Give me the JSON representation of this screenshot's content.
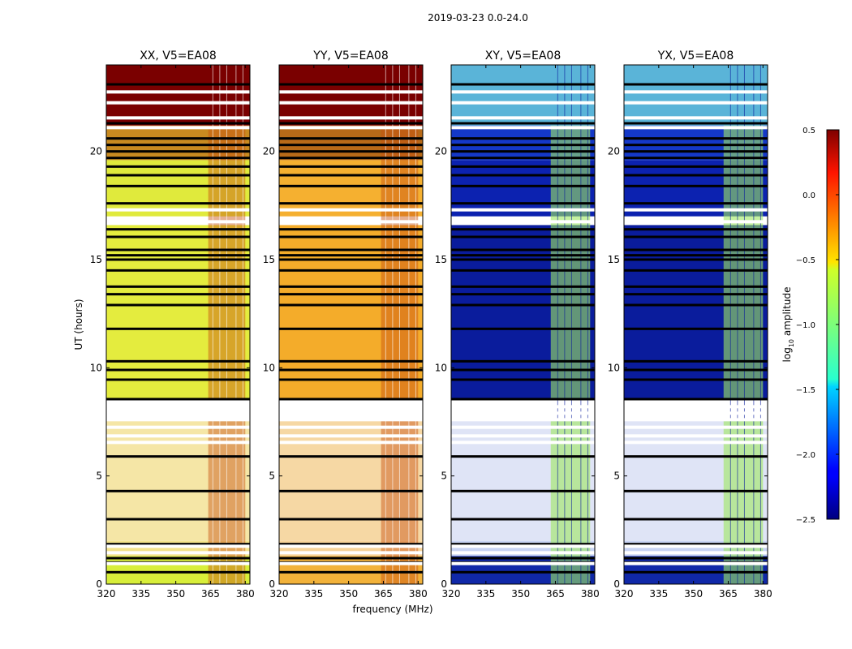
{
  "figure": {
    "suptitle": "2019-03-23 0.0-24.0",
    "ylabel": "UT (hours)",
    "xlabel": "frequency (MHz)"
  },
  "chart_data": {
    "type": "heatmap",
    "title": "2019-03-23 0.0-24.0",
    "xlabel": "frequency (MHz)",
    "ylabel": "UT (hours)",
    "xlim": [
      320,
      382
    ],
    "ylim": [
      0,
      24
    ],
    "x_ticks": [
      320,
      335,
      350,
      365,
      380
    ],
    "y_ticks": [
      0,
      5,
      10,
      15,
      20
    ],
    "panels": [
      {
        "title": "XX, V5=EA08",
        "bands": [
          {
            "from": 0,
            "to": 1.3,
            "color": "#d8ee3a"
          },
          {
            "from": 1.3,
            "to": 2.0,
            "color": "#f4e48c"
          },
          {
            "from": 2.0,
            "to": 7.6,
            "color": "#f5e6a6"
          },
          {
            "from": 7.6,
            "to": 8.6,
            "color": "#ffffff"
          },
          {
            "from": 8.6,
            "to": 16.6,
            "color": "#e4ec3e"
          },
          {
            "from": 16.6,
            "to": 17.0,
            "color": "#ffffff"
          },
          {
            "from": 17.0,
            "to": 19.6,
            "color": "#e0ea3c"
          },
          {
            "from": 19.6,
            "to": 21.2,
            "color": "#c88a20"
          },
          {
            "from": 21.2,
            "to": 24,
            "color": "#7a0000"
          }
        ]
      },
      {
        "title": "YY, V5=EA08",
        "bands": [
          {
            "from": 0,
            "to": 1.3,
            "color": "#f2b23a"
          },
          {
            "from": 1.3,
            "to": 2.0,
            "color": "#f7d49a"
          },
          {
            "from": 2.0,
            "to": 7.6,
            "color": "#f6d8a4"
          },
          {
            "from": 7.6,
            "to": 8.6,
            "color": "#ffffff"
          },
          {
            "from": 8.6,
            "to": 16.6,
            "color": "#f4ac2a"
          },
          {
            "from": 16.6,
            "to": 17.0,
            "color": "#ffffff"
          },
          {
            "from": 17.0,
            "to": 19.6,
            "color": "#f5b030"
          },
          {
            "from": 19.6,
            "to": 21.2,
            "color": "#b86a18"
          },
          {
            "from": 21.2,
            "to": 24,
            "color": "#7a0000"
          }
        ]
      },
      {
        "title": "XY, V5=EA08",
        "bands": [
          {
            "from": 0,
            "to": 1.3,
            "color": "#1028a8"
          },
          {
            "from": 1.3,
            "to": 2.0,
            "color": "#c8d4f4"
          },
          {
            "from": 2.0,
            "to": 7.6,
            "color": "#dfe4f6"
          },
          {
            "from": 7.6,
            "to": 8.6,
            "color": "#ffffff"
          },
          {
            "from": 8.6,
            "to": 16.6,
            "color": "#0a1c9c"
          },
          {
            "from": 16.6,
            "to": 17.0,
            "color": "#ffffff"
          },
          {
            "from": 17.0,
            "to": 19.6,
            "color": "#0c22b0"
          },
          {
            "from": 19.6,
            "to": 21.2,
            "color": "#1438c8"
          },
          {
            "from": 21.2,
            "to": 24,
            "color": "#5ab4d8"
          }
        ]
      },
      {
        "title": "YX, V5=EA08",
        "bands": [
          {
            "from": 0,
            "to": 1.3,
            "color": "#1028a8"
          },
          {
            "from": 1.3,
            "to": 2.0,
            "color": "#c8d4f4"
          },
          {
            "from": 2.0,
            "to": 7.6,
            "color": "#dfe4f6"
          },
          {
            "from": 7.6,
            "to": 8.6,
            "color": "#ffffff"
          },
          {
            "from": 8.6,
            "to": 16.6,
            "color": "#0a1c9c"
          },
          {
            "from": 16.6,
            "to": 17.0,
            "color": "#ffffff"
          },
          {
            "from": 17.0,
            "to": 19.6,
            "color": "#0c22b0"
          },
          {
            "from": 19.6,
            "to": 21.2,
            "color": "#1438c8"
          },
          {
            "from": 21.2,
            "to": 24,
            "color": "#5ab4d8"
          }
        ]
      }
    ],
    "freq_feature_bands": {
      "parallel": {
        "from": 364,
        "to": 380,
        "color": "#c85010"
      },
      "cross": {
        "from": 363,
        "to": 380,
        "color": "#9ee860"
      }
    },
    "white_gap_rows_hours": [
      0.95,
      1.45,
      1.75,
      6.55,
      6.85,
      7.25,
      7.6,
      7.9,
      8.2,
      16.75,
      17.3,
      21.1,
      21.55,
      22.25,
      22.75
    ],
    "black_gap_rows_hours": [
      0.55,
      1.0,
      1.2,
      1.85,
      3.0,
      4.3,
      5.9,
      8.55,
      9.45,
      9.9,
      10.3,
      11.8,
      12.9,
      13.4,
      13.75,
      14.5,
      15.0,
      15.2,
      15.45,
      16.05,
      16.4,
      17.6,
      18.4,
      18.9,
      19.3,
      19.7,
      20.0,
      20.3,
      20.6,
      21.3,
      23.1
    ],
    "colorbar": {
      "label_main": "log",
      "label_sub": "10",
      "label_rest": " amplitude",
      "range": [
        -2.5,
        0.5
      ],
      "ticks": [
        "0.5",
        "0.0",
        "−0.5",
        "−1.0",
        "−1.5",
        "−2.0",
        "−2.5"
      ],
      "colormap": "jet"
    }
  }
}
